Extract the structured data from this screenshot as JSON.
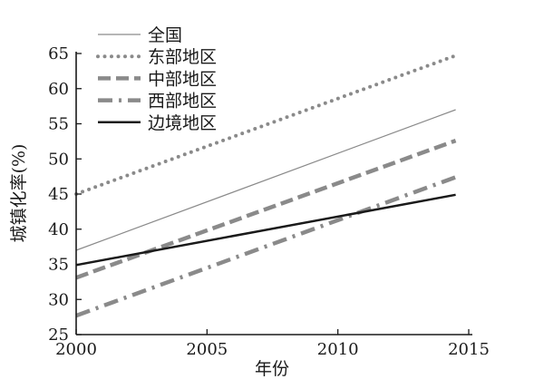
{
  "chart_data": {
    "type": "line",
    "title": "",
    "xlabel": "年份",
    "ylabel": "城镇化率(%)",
    "xlim": [
      2000,
      2015
    ],
    "ylim": [
      25,
      65
    ],
    "xticks": [
      2000,
      2005,
      2010,
      2015
    ],
    "yticks": [
      25,
      30,
      35,
      40,
      45,
      50,
      55,
      60,
      65
    ],
    "grid": false,
    "legend_position": "top-left",
    "series": [
      {
        "name": "全国",
        "style": "thin",
        "color": "#8a8a8a",
        "x": [
          2000,
          2014.5
        ],
        "values": [
          37.0,
          57.0
        ]
      },
      {
        "name": "东部地区",
        "style": "dotted",
        "color": "#8a8a8a",
        "x": [
          2000,
          2014.5
        ],
        "values": [
          45.0,
          64.7
        ]
      },
      {
        "name": "中部地区",
        "style": "dashed",
        "color": "#8a8a8a",
        "x": [
          2000,
          2014.5
        ],
        "values": [
          33.1,
          52.6
        ]
      },
      {
        "name": "西部地区",
        "style": "dashdot",
        "color": "#8a8a8a",
        "x": [
          2000,
          2014.5
        ],
        "values": [
          27.7,
          47.4
        ]
      },
      {
        "name": "边境地区",
        "style": "solid-bold",
        "color": "#1a1a1a",
        "x": [
          2000,
          2014.5
        ],
        "values": [
          34.9,
          44.9
        ]
      }
    ]
  }
}
